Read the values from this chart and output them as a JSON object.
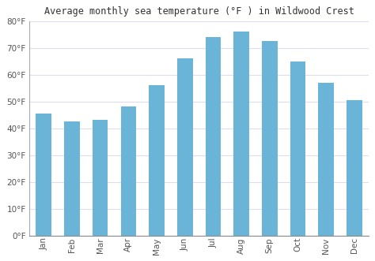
{
  "title": "Average monthly sea temperature (°F ) in Wildwood Crest",
  "months": [
    "Jan",
    "Feb",
    "Mar",
    "Apr",
    "May",
    "Jun",
    "Jul",
    "Aug",
    "Sep",
    "Oct",
    "Nov",
    "Dec"
  ],
  "values": [
    45.5,
    42.5,
    43.0,
    48.0,
    56.0,
    66.0,
    74.0,
    76.0,
    72.5,
    65.0,
    57.0,
    50.5
  ],
  "bar_color": "#6ab4d8",
  "background_color": "#ffffff",
  "plot_background": "#ffffff",
  "ylim": [
    0,
    80
  ],
  "yticks": [
    0,
    10,
    20,
    30,
    40,
    50,
    60,
    70,
    80
  ],
  "ytick_labels": [
    "0°F",
    "10°F",
    "20°F",
    "30°F",
    "40°F",
    "50°F",
    "60°F",
    "70°F",
    "80°F"
  ],
  "title_fontsize": 8.5,
  "tick_fontsize": 7.5,
  "grid_color": "#ddddee",
  "bar_width": 0.55
}
